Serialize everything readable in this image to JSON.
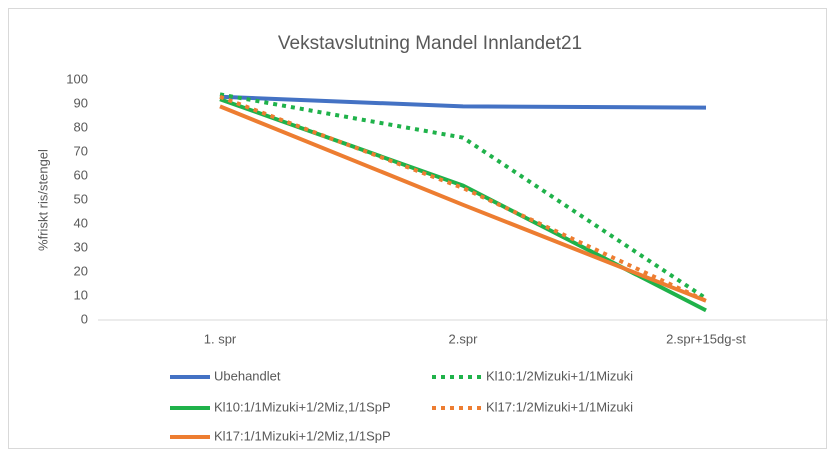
{
  "chart_data": {
    "type": "line",
    "title": "Vekstavslutning Mandel Innlandet21",
    "y_label": "%friskt ris/stengel",
    "categories": [
      "1. spr",
      "2.spr",
      "2.spr+15dg-st"
    ],
    "series": [
      {
        "name": "Ubehandlet",
        "color": "#4472c4",
        "style": "solid",
        "values": [
          93,
          89,
          88.5
        ]
      },
      {
        "name": "Kl10:1/2Mizuki+1/1Mizuki",
        "color": "#1fb24a",
        "style": "dotted",
        "values": [
          94,
          76,
          9
        ]
      },
      {
        "name": "Kl10:1/1Mizuki+1/2Miz,1/1SpP",
        "color": "#1fb24a",
        "style": "solid",
        "values": [
          92,
          56,
          4
        ]
      },
      {
        "name": "Kl17:1/2Mizuki+1/1Mizuki",
        "color": "#ed7d31",
        "style": "dotted",
        "values": [
          93,
          55,
          8
        ]
      },
      {
        "name": "Kl17:1/1Mizuki+1/2Miz,1/1SpP",
        "color": "#ed7d31",
        "style": "solid",
        "values": [
          89,
          48,
          8
        ]
      }
    ],
    "ylim": [
      0,
      100
    ],
    "yticks": [
      0,
      10,
      20,
      30,
      40,
      50,
      60,
      70,
      80,
      90,
      100
    ],
    "grid": false
  }
}
